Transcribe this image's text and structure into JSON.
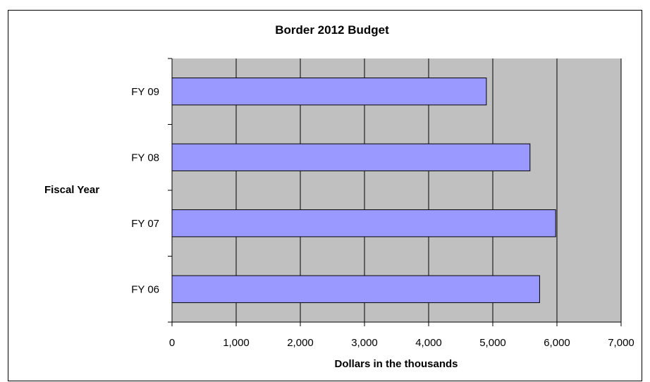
{
  "chart_data": {
    "type": "bar",
    "orientation": "horizontal",
    "title": "Border 2012 Budget",
    "xlabel": "Dollars in the thousands",
    "ylabel": "Fiscal Year",
    "categories": [
      "FY 09",
      "FY 08",
      "FY 07",
      "FY 06"
    ],
    "values": [
      4900,
      5580,
      5980,
      5730
    ],
    "xlim": [
      0,
      7000
    ],
    "xticks": [
      0,
      1000,
      2000,
      3000,
      4000,
      5000,
      6000,
      7000
    ],
    "xtick_labels": [
      "0",
      "1,000",
      "2,000",
      "3,000",
      "4,000",
      "5,000",
      "6,000",
      "7,000"
    ],
    "grid": true,
    "legend": "none",
    "colors": {
      "bar_fill": "#9999ff",
      "plot_background": "#c0c0c0",
      "gridline": "#000000",
      "outline": "#000000"
    }
  }
}
